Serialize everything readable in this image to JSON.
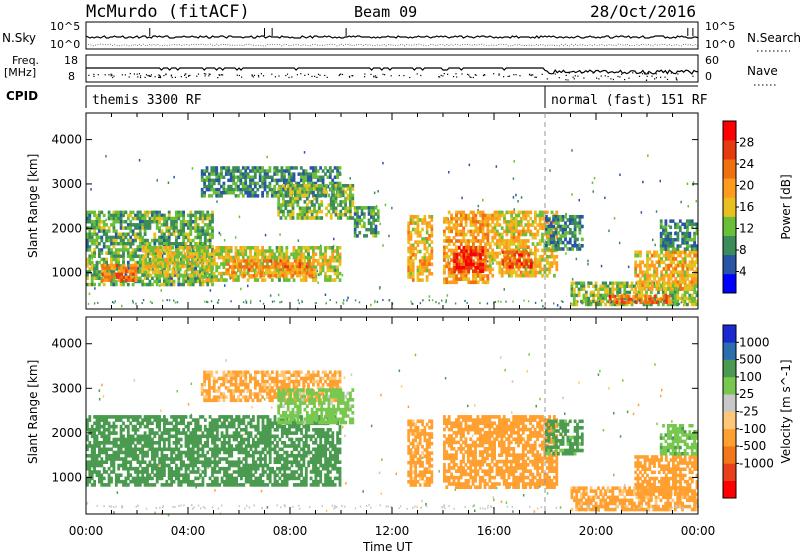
{
  "header": {
    "station": "McMurdo (fitACF)",
    "beam": "Beam 09",
    "date": "28/Oct/2016"
  },
  "top_panels": {
    "nsky_label": "N.Sky",
    "nsky_ticks": [
      "10^5",
      "10^0"
    ],
    "nsearch_label": "N.Search",
    "nsearch_ticks": [
      "10^5",
      "10^0"
    ],
    "freq_label": "Freq.",
    "freq_unit": "[MHz]",
    "freq_ticks": [
      "18",
      "8"
    ],
    "nave_label": "Nave",
    "nave_ticks": [
      "60",
      "0"
    ],
    "cpid_label": "CPID",
    "cpid_segments": [
      {
        "label": "themis 3300 RF",
        "start_hour": 0.0,
        "end_hour": 18.0
      },
      {
        "label": "normal (fast) 151 RF",
        "start_hour": 18.0,
        "end_hour": 24.0
      }
    ]
  },
  "colors": {
    "power_scale": [
      "#0000ff",
      "#2a55a6",
      "#3c8c5a",
      "#6abf3a",
      "#e8c020",
      "#ff9c1e",
      "#f07010",
      "#e63a10",
      "#ff0000"
    ],
    "velocity_scale": [
      "#ff0000",
      "#e8401a",
      "#f07818",
      "#ffa030",
      "#ffc878",
      "#c8c8c8",
      "#78c850",
      "#4a9a50",
      "#2b6eb0",
      "#1a2ad0"
    ]
  },
  "chart_data": [
    {
      "type": "heatmap",
      "panel": "power",
      "title": "",
      "xlabel": "Time UT",
      "ylabel": "Slant Range [km]",
      "xlim": [
        0,
        24
      ],
      "ylim": [
        180,
        4600
      ],
      "x_ticks": [
        "00:00",
        "04:00",
        "08:00",
        "12:00",
        "16:00",
        "20:00",
        "00:00"
      ],
      "y_ticks": [
        1000,
        2000,
        3000,
        4000
      ],
      "colorbar": {
        "label": "Power [dB]",
        "ticks": [
          4,
          8,
          12,
          16,
          20,
          24,
          28
        ],
        "range": [
          0,
          32
        ]
      },
      "regions": [
        {
          "t0": 0.0,
          "t1": 5.0,
          "r0": 700,
          "r1": 2400,
          "value": 11
        },
        {
          "t0": 0.6,
          "t1": 2.0,
          "r0": 800,
          "r1": 1200,
          "value": 22
        },
        {
          "t0": 2.2,
          "t1": 4.5,
          "r0": 900,
          "r1": 1600,
          "value": 16
        },
        {
          "t0": 4.5,
          "t1": 10.0,
          "r0": 800,
          "r1": 1600,
          "value": 15
        },
        {
          "t0": 5.5,
          "t1": 9.0,
          "r0": 900,
          "r1": 1300,
          "value": 21
        },
        {
          "t0": 4.5,
          "t1": 10.0,
          "r0": 2700,
          "r1": 3400,
          "value": 9
        },
        {
          "t0": 7.5,
          "t1": 10.5,
          "r0": 2200,
          "r1": 3000,
          "value": 12
        },
        {
          "t0": 10.5,
          "t1": 11.5,
          "r0": 1800,
          "r1": 2500,
          "value": 10
        },
        {
          "t0": 12.6,
          "t1": 13.6,
          "r0": 800,
          "r1": 2300,
          "value": 18
        },
        {
          "t0": 14.0,
          "t1": 15.8,
          "r0": 750,
          "r1": 2400,
          "value": 20
        },
        {
          "t0": 14.4,
          "t1": 15.6,
          "r0": 1000,
          "r1": 1600,
          "value": 28
        },
        {
          "t0": 15.8,
          "t1": 18.5,
          "r0": 900,
          "r1": 2400,
          "value": 17
        },
        {
          "t0": 16.3,
          "t1": 17.5,
          "r0": 1100,
          "r1": 1500,
          "value": 25
        },
        {
          "t0": 18.0,
          "t1": 19.5,
          "r0": 1500,
          "r1": 2300,
          "value": 8
        },
        {
          "t0": 19.0,
          "t1": 24.0,
          "r0": 250,
          "r1": 800,
          "value": 13
        },
        {
          "t0": 20.5,
          "t1": 23.0,
          "r0": 300,
          "r1": 500,
          "value": 24
        },
        {
          "t0": 21.5,
          "t1": 24.0,
          "r0": 600,
          "r1": 1500,
          "value": 18
        },
        {
          "t0": 22.5,
          "t1": 24.0,
          "r0": 1500,
          "r1": 2200,
          "value": 9
        }
      ]
    },
    {
      "type": "heatmap",
      "panel": "velocity",
      "title": "",
      "xlabel": "Time UT",
      "ylabel": "Slant Range [km]",
      "xlim": [
        0,
        24
      ],
      "ylim": [
        180,
        4600
      ],
      "x_ticks": [
        "00:00",
        "04:00",
        "08:00",
        "12:00",
        "16:00",
        "20:00",
        "00:00"
      ],
      "y_ticks": [
        1000,
        2000,
        3000,
        4000
      ],
      "colorbar": {
        "label": "Velocity [m s^-1]",
        "ticks": [
          "1000",
          "500",
          "100",
          "25",
          "-25",
          "-100",
          "-500",
          "-1000"
        ]
      },
      "regions": [
        {
          "t0": 0.0,
          "t1": 10.0,
          "r0": 800,
          "r1": 2400,
          "value": 200
        },
        {
          "t0": 4.5,
          "t1": 10.0,
          "r0": 2700,
          "r1": 3400,
          "value": -120
        },
        {
          "t0": 7.5,
          "t1": 10.5,
          "r0": 2200,
          "r1": 3000,
          "value": 40
        },
        {
          "t0": 12.6,
          "t1": 13.6,
          "r0": 800,
          "r1": 2300,
          "value": -150
        },
        {
          "t0": 14.0,
          "t1": 18.5,
          "r0": 750,
          "r1": 2400,
          "value": -300
        },
        {
          "t0": 18.0,
          "t1": 19.5,
          "r0": 1500,
          "r1": 2300,
          "value": 150
        },
        {
          "t0": 19.0,
          "t1": 24.0,
          "r0": 250,
          "r1": 800,
          "value": -130
        },
        {
          "t0": 21.5,
          "t1": 24.0,
          "r0": 600,
          "r1": 1500,
          "value": -250
        },
        {
          "t0": 22.5,
          "t1": 24.0,
          "r0": 1500,
          "r1": 2200,
          "value": 80
        }
      ]
    }
  ]
}
